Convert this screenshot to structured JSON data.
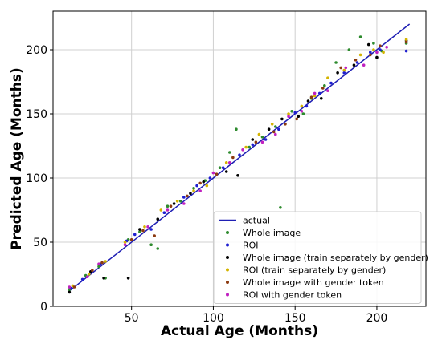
{
  "chart_data": {
    "type": "scatter",
    "title": "",
    "xlabel": "Actual Age (Months)",
    "ylabel": "Predicted Age (Months)",
    "xlim": [
      2,
      230
    ],
    "ylim": [
      0,
      230
    ],
    "xticks": [
      50,
      100,
      150,
      200
    ],
    "yticks": [
      0,
      50,
      100,
      150,
      200
    ],
    "grid": true,
    "legend_position": "bottom-right",
    "reference_line": {
      "name": "actual",
      "color": "#1f1fb4",
      "x": [
        12,
        220
      ],
      "y": [
        12,
        220
      ]
    },
    "series": [
      {
        "name": "Whole image",
        "color": "#2e8b2e",
        "points": [
          [
            12,
            13
          ],
          [
            22,
            24
          ],
          [
            30,
            31
          ],
          [
            34,
            22
          ],
          [
            48,
            52
          ],
          [
            55,
            58
          ],
          [
            62,
            48
          ],
          [
            66,
            45
          ],
          [
            72,
            78
          ],
          [
            80,
            82
          ],
          [
            88,
            92
          ],
          [
            95,
            98
          ],
          [
            104,
            108
          ],
          [
            110,
            120
          ],
          [
            114,
            138
          ],
          [
            122,
            124
          ],
          [
            130,
            132
          ],
          [
            138,
            140
          ],
          [
            141,
            77
          ],
          [
            148,
            152
          ],
          [
            155,
            150
          ],
          [
            160,
            162
          ],
          [
            168,
            172
          ],
          [
            175,
            190
          ],
          [
            183,
            200
          ],
          [
            190,
            210
          ],
          [
            198,
            205
          ],
          [
            203,
            199
          ],
          [
            218,
            205
          ]
        ]
      },
      {
        "name": "ROI",
        "color": "#1f1fd0",
        "points": [
          [
            13,
            14
          ],
          [
            20,
            21
          ],
          [
            31,
            33
          ],
          [
            47,
            51
          ],
          [
            52,
            56
          ],
          [
            62,
            60
          ],
          [
            70,
            73
          ],
          [
            82,
            85
          ],
          [
            90,
            94
          ],
          [
            98,
            100
          ],
          [
            106,
            108
          ],
          [
            116,
            118
          ],
          [
            124,
            126
          ],
          [
            132,
            130
          ],
          [
            140,
            138
          ],
          [
            150,
            151
          ],
          [
            157,
            156
          ],
          [
            165,
            166
          ],
          [
            172,
            174
          ],
          [
            180,
            182
          ],
          [
            188,
            190
          ],
          [
            196,
            198
          ],
          [
            202,
            200
          ],
          [
            218,
            199
          ]
        ]
      },
      {
        "name": "Whole image (train separately by gender)",
        "color": "#000000",
        "points": [
          [
            12,
            11
          ],
          [
            25,
            27
          ],
          [
            33,
            22
          ],
          [
            48,
            22
          ],
          [
            55,
            60
          ],
          [
            66,
            68
          ],
          [
            76,
            80
          ],
          [
            86,
            88
          ],
          [
            94,
            97
          ],
          [
            108,
            105
          ],
          [
            115,
            102
          ],
          [
            124,
            130
          ],
          [
            134,
            138
          ],
          [
            142,
            146
          ],
          [
            152,
            148
          ],
          [
            158,
            160
          ],
          [
            166,
            162
          ],
          [
            176,
            182
          ],
          [
            186,
            188
          ],
          [
            195,
            204
          ],
          [
            200,
            194
          ],
          [
            218,
            207
          ]
        ]
      },
      {
        "name": "ROI (train separately by gender)",
        "color": "#d4b400",
        "points": [
          [
            14,
            16
          ],
          [
            24,
            25
          ],
          [
            34,
            35
          ],
          [
            46,
            50
          ],
          [
            58,
            62
          ],
          [
            68,
            75
          ],
          [
            78,
            82
          ],
          [
            88,
            90
          ],
          [
            96,
            94
          ],
          [
            108,
            112
          ],
          [
            120,
            124
          ],
          [
            128,
            134
          ],
          [
            136,
            142
          ],
          [
            146,
            150
          ],
          [
            154,
            156
          ],
          [
            162,
            164
          ],
          [
            170,
            178
          ],
          [
            180,
            184
          ],
          [
            190,
            196
          ],
          [
            198,
            200
          ],
          [
            204,
            198
          ],
          [
            218,
            208
          ]
        ]
      },
      {
        "name": "Whole image with gender token",
        "color": "#8b3a10",
        "points": [
          [
            15,
            15
          ],
          [
            26,
            28
          ],
          [
            32,
            34
          ],
          [
            50,
            52
          ],
          [
            57,
            59
          ],
          [
            64,
            55
          ],
          [
            74,
            78
          ],
          [
            84,
            86
          ],
          [
            92,
            96
          ],
          [
            102,
            103
          ],
          [
            112,
            116
          ],
          [
            126,
            128
          ],
          [
            137,
            136
          ],
          [
            144,
            142
          ],
          [
            151,
            146
          ],
          [
            160,
            163
          ],
          [
            167,
            170
          ],
          [
            178,
            186
          ],
          [
            187,
            192
          ],
          [
            196,
            196
          ],
          [
            202,
            203
          ],
          [
            218,
            206
          ]
        ]
      },
      {
        "name": "ROI with gender token",
        "color": "#c020c0",
        "points": [
          [
            12,
            15
          ],
          [
            23,
            23
          ],
          [
            30,
            33
          ],
          [
            46,
            48
          ],
          [
            60,
            62
          ],
          [
            72,
            75
          ],
          [
            82,
            80
          ],
          [
            92,
            90
          ],
          [
            100,
            104
          ],
          [
            110,
            112
          ],
          [
            118,
            122
          ],
          [
            130,
            128
          ],
          [
            138,
            134
          ],
          [
            146,
            148
          ],
          [
            154,
            152
          ],
          [
            162,
            166
          ],
          [
            170,
            168
          ],
          [
            181,
            186
          ],
          [
            192,
            188
          ],
          [
            200,
            198
          ],
          [
            206,
            202
          ]
        ]
      }
    ]
  }
}
